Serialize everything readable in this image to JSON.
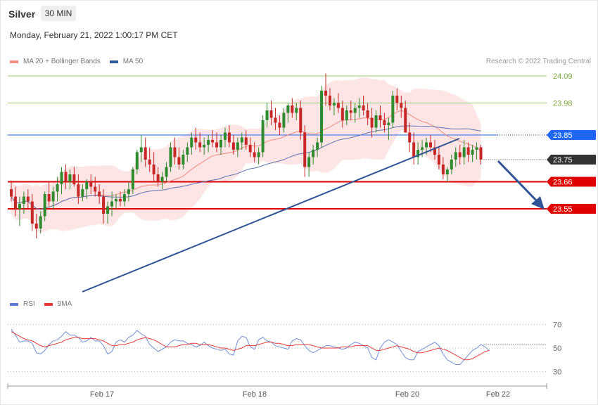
{
  "header": {
    "symbol": "Silver",
    "timeframe": "30 MIN",
    "datetime": "Monday, February 21, 2022 1:00:17 PM CET"
  },
  "legend_main": [
    {
      "label": "MA 20 + Bollinger Bands",
      "color": "#f28b82"
    },
    {
      "label": "MA 50",
      "color": "#335c99"
    }
  ],
  "legend_rsi": [
    {
      "label": "RSI",
      "color": "#5b7fd6"
    },
    {
      "label": "9MA",
      "color": "#e53935"
    }
  ],
  "credit": "Research © 2022 Trading Central",
  "colors": {
    "candle_up": "#2e8b2e",
    "candle_down": "#c62828",
    "band_fill": "#fde2e2",
    "ma20": "#f28b82",
    "ma50": "#5b74b0",
    "trendline": "#2f5597",
    "resistance_green": "#9acd6a",
    "support_red": "#e00000",
    "blue_level": "#1e66f5",
    "current_price_bg": "#333333"
  },
  "chart_data": [
    {
      "type": "candlestick",
      "title": "Silver",
      "timeframe": "30 MIN",
      "x_ticks": [
        "Feb 17",
        "Feb 18",
        "Feb 20",
        "Feb 22"
      ],
      "ylim": [
        23.35,
        24.11
      ],
      "levels": [
        {
          "value": 24.09,
          "label": "24.09",
          "kind": "resistance",
          "color": "#9acd6a"
        },
        {
          "value": 23.98,
          "label": "23.98",
          "kind": "resistance",
          "color": "#9acd6a"
        },
        {
          "value": 23.85,
          "label": "23.85",
          "kind": "pivot",
          "color": "#1e66f5"
        },
        {
          "value": 23.75,
          "label": "23.75",
          "kind": "current",
          "color": "#333333"
        },
        {
          "value": 23.66,
          "label": "23.66",
          "kind": "support",
          "color": "#e00000"
        },
        {
          "value": 23.55,
          "label": "23.55",
          "kind": "support",
          "color": "#e00000"
        }
      ],
      "ohlc": [
        [
          23.63,
          23.66,
          23.58,
          23.6
        ],
        [
          23.6,
          23.64,
          23.52,
          23.55
        ],
        [
          23.55,
          23.6,
          23.48,
          23.57
        ],
        [
          23.57,
          23.62,
          23.53,
          23.6
        ],
        [
          23.6,
          23.63,
          23.55,
          23.58
        ],
        [
          23.58,
          23.61,
          23.46,
          23.49
        ],
        [
          23.49,
          23.53,
          23.43,
          23.47
        ],
        [
          23.47,
          23.54,
          23.45,
          23.52
        ],
        [
          23.52,
          23.62,
          23.5,
          23.61
        ],
        [
          23.61,
          23.66,
          23.56,
          23.58
        ],
        [
          23.58,
          23.64,
          23.55,
          23.62
        ],
        [
          23.62,
          23.68,
          23.58,
          23.65
        ],
        [
          23.65,
          23.72,
          23.61,
          23.7
        ],
        [
          23.7,
          23.73,
          23.63,
          23.66
        ],
        [
          23.66,
          23.71,
          23.63,
          23.69
        ],
        [
          23.69,
          23.72,
          23.64,
          23.65
        ],
        [
          23.65,
          23.69,
          23.57,
          23.6
        ],
        [
          23.6,
          23.65,
          23.58,
          23.63
        ],
        [
          23.63,
          23.67,
          23.59,
          23.66
        ],
        [
          23.66,
          23.69,
          23.61,
          23.64
        ],
        [
          23.64,
          23.68,
          23.6,
          23.62
        ],
        [
          23.62,
          23.65,
          23.57,
          23.6
        ],
        [
          23.6,
          23.63,
          23.49,
          23.53
        ],
        [
          23.53,
          23.58,
          23.49,
          23.56
        ],
        [
          23.56,
          23.62,
          23.52,
          23.58
        ],
        [
          23.58,
          23.61,
          23.55,
          23.59
        ],
        [
          23.59,
          23.62,
          23.56,
          23.58
        ],
        [
          23.58,
          23.63,
          23.56,
          23.61
        ],
        [
          23.61,
          23.66,
          23.58,
          23.63
        ],
        [
          23.63,
          23.72,
          23.61,
          23.71
        ],
        [
          23.71,
          23.79,
          23.69,
          23.78
        ],
        [
          23.78,
          23.85,
          23.74,
          23.8
        ],
        [
          23.8,
          23.84,
          23.72,
          23.75
        ],
        [
          23.75,
          23.8,
          23.7,
          23.73
        ],
        [
          23.73,
          23.78,
          23.66,
          23.69
        ],
        [
          23.69,
          23.72,
          23.64,
          23.66
        ],
        [
          23.66,
          23.7,
          23.63,
          23.68
        ],
        [
          23.68,
          23.74,
          23.66,
          23.72
        ],
        [
          23.72,
          23.82,
          23.7,
          23.8
        ],
        [
          23.8,
          23.84,
          23.73,
          23.76
        ],
        [
          23.76,
          23.8,
          23.71,
          23.73
        ],
        [
          23.73,
          23.79,
          23.71,
          23.77
        ],
        [
          23.77,
          23.82,
          23.74,
          23.8
        ],
        [
          23.8,
          23.86,
          23.77,
          23.84
        ],
        [
          23.84,
          23.88,
          23.79,
          23.82
        ],
        [
          23.82,
          23.86,
          23.78,
          23.8
        ],
        [
          23.8,
          23.84,
          23.77,
          23.81
        ],
        [
          23.81,
          23.85,
          23.78,
          23.83
        ],
        [
          23.83,
          23.87,
          23.8,
          23.82
        ],
        [
          23.82,
          23.86,
          23.78,
          23.8
        ],
        [
          23.8,
          23.85,
          23.77,
          23.83
        ],
        [
          23.83,
          23.88,
          23.8,
          23.86
        ],
        [
          23.86,
          23.89,
          23.8,
          23.82
        ],
        [
          23.82,
          23.85,
          23.77,
          23.79
        ],
        [
          23.79,
          23.84,
          23.76,
          23.82
        ],
        [
          23.82,
          23.86,
          23.79,
          23.84
        ],
        [
          23.84,
          23.87,
          23.79,
          23.81
        ],
        [
          23.81,
          23.84,
          23.76,
          23.78
        ],
        [
          23.78,
          23.82,
          23.74,
          23.76
        ],
        [
          23.76,
          23.8,
          23.73,
          23.78
        ],
        [
          23.78,
          23.93,
          23.76,
          23.91
        ],
        [
          23.91,
          23.98,
          23.88,
          23.95
        ],
        [
          23.95,
          23.99,
          23.89,
          23.92
        ],
        [
          23.92,
          23.96,
          23.87,
          23.9
        ],
        [
          23.9,
          23.93,
          23.85,
          23.88
        ],
        [
          23.88,
          23.96,
          23.86,
          23.94
        ],
        [
          23.94,
          23.98,
          23.9,
          23.97
        ],
        [
          23.97,
          24.0,
          23.92,
          23.94
        ],
        [
          23.94,
          23.98,
          23.91,
          23.96
        ],
        [
          23.96,
          23.99,
          23.83,
          23.86
        ],
        [
          23.86,
          23.89,
          23.68,
          23.72
        ],
        [
          23.72,
          23.78,
          23.68,
          23.76
        ],
        [
          23.76,
          23.81,
          23.73,
          23.79
        ],
        [
          23.79,
          23.84,
          23.76,
          23.82
        ],
        [
          23.82,
          24.05,
          23.8,
          24.03
        ],
        [
          24.03,
          24.1,
          23.97,
          24.01
        ],
        [
          24.01,
          24.04,
          23.95,
          23.97
        ],
        [
          23.97,
          24.0,
          23.93,
          23.98
        ],
        [
          23.98,
          24.02,
          23.94,
          23.96
        ],
        [
          23.96,
          23.99,
          23.88,
          23.91
        ],
        [
          23.91,
          23.97,
          23.89,
          23.95
        ],
        [
          23.95,
          23.99,
          23.91,
          23.94
        ],
        [
          23.94,
          23.98,
          23.9,
          23.96
        ],
        [
          23.96,
          24.0,
          23.92,
          23.97
        ],
        [
          23.97,
          24.01,
          23.93,
          23.95
        ],
        [
          23.95,
          23.98,
          23.89,
          23.92
        ],
        [
          23.92,
          23.96,
          23.84,
          23.88
        ],
        [
          23.88,
          23.95,
          23.86,
          23.93
        ],
        [
          23.93,
          23.97,
          23.88,
          23.91
        ],
        [
          23.91,
          23.94,
          23.86,
          23.89
        ],
        [
          23.89,
          23.92,
          23.83,
          23.9
        ],
        [
          23.9,
          24.03,
          23.88,
          24.01
        ],
        [
          24.01,
          24.04,
          23.95,
          23.98
        ],
        [
          23.98,
          24.01,
          23.92,
          23.96
        ],
        [
          23.96,
          23.99,
          23.86,
          23.86
        ],
        [
          23.86,
          23.9,
          23.78,
          23.82
        ],
        [
          23.82,
          23.86,
          23.73,
          23.76
        ],
        [
          23.76,
          23.82,
          23.73,
          23.79
        ],
        [
          23.79,
          23.83,
          23.76,
          23.8
        ],
        [
          23.8,
          23.84,
          23.77,
          23.82
        ],
        [
          23.82,
          23.85,
          23.78,
          23.8
        ],
        [
          23.8,
          23.83,
          23.75,
          23.77
        ],
        [
          23.77,
          23.8,
          23.71,
          23.73
        ],
        [
          23.73,
          23.76,
          23.67,
          23.69
        ],
        [
          23.69,
          23.72,
          23.66,
          23.71
        ],
        [
          23.71,
          23.77,
          23.69,
          23.75
        ],
        [
          23.75,
          23.8,
          23.72,
          23.78
        ],
        [
          23.78,
          23.81,
          23.73,
          23.76
        ],
        [
          23.76,
          23.83,
          23.73,
          23.8
        ],
        [
          23.8,
          23.82,
          23.74,
          23.77
        ],
        [
          23.77,
          23.81,
          23.74,
          23.79
        ],
        [
          23.79,
          23.82,
          23.75,
          23.8
        ],
        [
          23.8,
          23.81,
          23.73,
          23.75
        ]
      ]
    },
    {
      "type": "line",
      "title": "RSI",
      "y_ticks": [
        30,
        50,
        70
      ],
      "ylim": [
        20,
        80
      ],
      "series": [
        {
          "name": "RSI",
          "values": [
            66,
            61,
            55,
            56,
            56,
            54,
            46,
            45,
            48,
            53,
            56,
            57,
            60,
            64,
            61,
            61,
            59,
            55,
            56,
            59,
            56,
            56,
            52,
            45,
            47,
            55,
            57,
            55,
            59,
            61,
            65,
            62,
            60,
            53,
            50,
            47,
            49,
            51,
            55,
            57,
            56,
            56,
            54,
            53,
            51,
            52,
            55,
            52,
            50,
            49,
            48,
            49,
            45,
            44,
            56,
            60,
            59,
            51,
            49,
            57,
            59,
            56,
            55,
            52,
            51,
            50,
            49,
            56,
            58,
            57,
            52,
            48,
            46,
            48,
            50,
            52,
            52,
            51,
            50,
            49,
            50,
            53,
            55,
            54,
            52,
            50,
            42,
            40,
            50,
            55,
            57,
            55,
            53,
            47,
            42,
            40,
            40,
            47,
            49,
            51,
            53,
            55,
            52,
            45,
            40,
            38,
            36,
            36,
            40,
            44,
            48,
            50,
            53,
            51,
            48
          ]
        },
        {
          "name": "9MA",
          "values": [
            64,
            62,
            60,
            58,
            57,
            56,
            54,
            52,
            51,
            52,
            53,
            54,
            55,
            57,
            58,
            59,
            59,
            58,
            58,
            58,
            58,
            57,
            56,
            54,
            52,
            52,
            53,
            53,
            54,
            55,
            57,
            58,
            59,
            58,
            57,
            55,
            53,
            51,
            51,
            51,
            52,
            53,
            53,
            54,
            54,
            53,
            53,
            53,
            52,
            51,
            50,
            50,
            49,
            48,
            49,
            50,
            52,
            52,
            52,
            53,
            54,
            55,
            55,
            54,
            54,
            53,
            52,
            52,
            53,
            53,
            53,
            53,
            52,
            51,
            50,
            50,
            50,
            50,
            50,
            51,
            51,
            51,
            52,
            52,
            52,
            52,
            50,
            48,
            48,
            49,
            50,
            51,
            52,
            51,
            50,
            49,
            47,
            46,
            46,
            47,
            48,
            49,
            50,
            49,
            48,
            46,
            44,
            42,
            40,
            40,
            41,
            43,
            45,
            47,
            48
          ]
        }
      ]
    }
  ]
}
